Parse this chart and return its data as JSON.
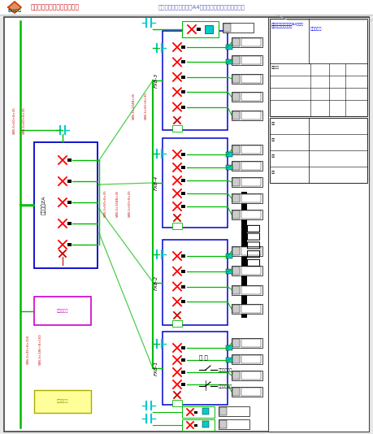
{
  "bg_color": "#e8e8e8",
  "paper_bg": "#ffffff",
  "title_left": "北京城建一建设工程有限公司",
  "title_right": "电子城配套管住宅小区A4楼工程临时用电施工组织设计",
  "logo_text": "BUCG",
  "main_title": "供电系统图",
  "green_color": "#00bb00",
  "blue_color": "#0000cc",
  "red_color": "#cc0000",
  "cyan_color": "#00cccc",
  "magenta_color": "#cc00cc",
  "left_box_label": "临配电箱ZA",
  "pump_box_label": "施工用电梯",
  "yellow_box_label": "三芯配电柜",
  "fxb_labels": [
    "FXB-3",
    "FXB-4",
    "FXB-2",
    "FXB-1"
  ],
  "legend_items": [
    "空气断路开关",
    "隔离断路开关"
  ],
  "figure_label": "图 例"
}
